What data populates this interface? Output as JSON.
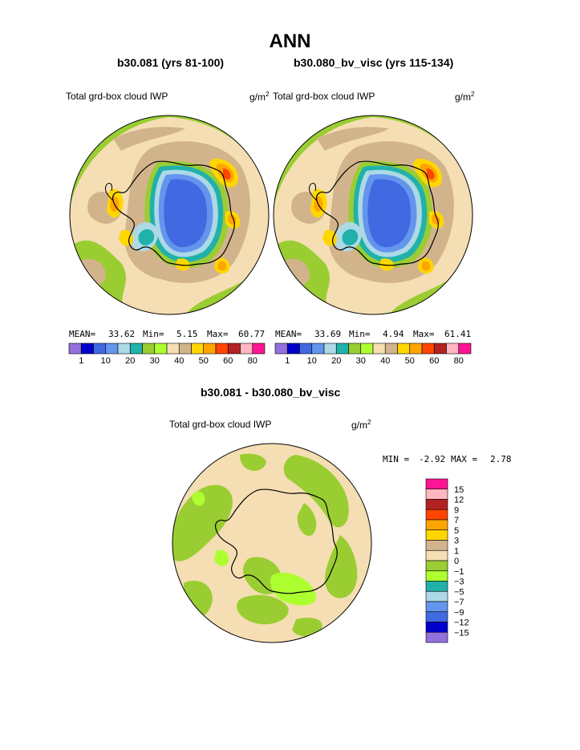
{
  "page": {
    "title": "ANN",
    "left_panel_title": "b30.081 (yrs 81-100)",
    "right_panel_title": "b30.080_bv_visc (yrs 115-134)",
    "diff_title": "b30.081 - b30.080_bv_visc"
  },
  "chart_data": [
    {
      "type": "heatmap",
      "projection": "south polar stereographic",
      "title": "b30.081 (yrs 81-100)",
      "field_label": "Total grd-box cloud IWP",
      "units": "g/m2",
      "stats": {
        "mean": "33.62",
        "min": "5.15",
        "max": "60.77"
      },
      "stats_labels": {
        "mean": "MEAN=",
        "min": "Min=",
        "max": "Max="
      },
      "colorbar": {
        "colors": [
          "#9370DB",
          "#0000CD",
          "#4169E1",
          "#6495ED",
          "#ADD8E6",
          "#20B2AA",
          "#9ACD32",
          "#ADFF2F",
          "#F5DEB3",
          "#D2B48C",
          "#FFD700",
          "#FFA500",
          "#FF4500",
          "#B22222",
          "#FFB6C1",
          "#FF1493"
        ],
        "tick_labels": [
          "1",
          "10",
          "20",
          "30",
          "40",
          "50",
          "60",
          "80"
        ]
      }
    },
    {
      "type": "heatmap",
      "projection": "south polar stereographic",
      "title": "b30.080_bv_visc (yrs 115-134)",
      "field_label": "Total grd-box cloud IWP",
      "units": "g/m2",
      "stats": {
        "mean": "33.69",
        "min": "4.94",
        "max": "61.41"
      },
      "stats_labels": {
        "mean": "MEAN=",
        "min": "Min=",
        "max": "Max="
      },
      "colorbar": {
        "colors": [
          "#9370DB",
          "#0000CD",
          "#4169E1",
          "#6495ED",
          "#ADD8E6",
          "#20B2AA",
          "#9ACD32",
          "#ADFF2F",
          "#F5DEB3",
          "#D2B48C",
          "#FFD700",
          "#FFA500",
          "#FF4500",
          "#B22222",
          "#FFB6C1",
          "#FF1493"
        ],
        "tick_labels": [
          "1",
          "10",
          "20",
          "30",
          "40",
          "50",
          "60",
          "80"
        ]
      }
    },
    {
      "type": "heatmap",
      "projection": "south polar stereographic",
      "title": "b30.081 - b30.080_bv_visc",
      "field_label": "Total grd-box cloud IWP",
      "units": "g/m2",
      "stats": {
        "min": "-2.92",
        "max": "2.78"
      },
      "stats_labels": {
        "min": "MIN =",
        "max": "MAX ="
      },
      "colorbar": {
        "colors": [
          "#FF1493",
          "#FFB6C1",
          "#B22222",
          "#FF4500",
          "#FFA500",
          "#FFD700",
          "#D2B48C",
          "#F5DEB3",
          "#9ACD32",
          "#ADFF2F",
          "#20B2AA",
          "#ADD8E6",
          "#6495ED",
          "#4169E1",
          "#0000CD",
          "#9370DB"
        ],
        "tick_labels": [
          "15",
          "12",
          "9",
          "7",
          "5",
          "3",
          "1",
          "0",
          "−1",
          "−3",
          "−5",
          "−7",
          "−9",
          "−12",
          "−15"
        ]
      }
    }
  ]
}
